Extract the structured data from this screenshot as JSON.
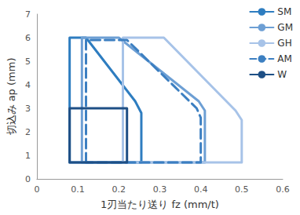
{
  "chart_data": {
    "type": "line",
    "x_label": "1刃当たり送り fz (mm/t)",
    "y_label": "切込み ap (mm)",
    "xlim": [
      0,
      0.6
    ],
    "xticks": [
      0,
      0.1,
      0.2,
      0.3,
      0.4,
      0.5,
      0.6
    ],
    "ylim": [
      0,
      7
    ],
    "yticks": [
      0,
      1,
      2,
      3,
      4,
      5,
      6,
      7
    ],
    "grid": false,
    "legend": "top-right",
    "marker": "none",
    "series": [
      {
        "name": "SM",
        "color": "#2e7dc0",
        "line_style": "solid",
        "x": [
          0.08,
          0.08,
          0.12,
          0.24,
          0.255,
          0.255,
          0.08
        ],
        "values": [
          0.7,
          6,
          6,
          3.3,
          2.8,
          0.7,
          0.7
        ]
      },
      {
        "name": "GM",
        "color": "#6d9fd4",
        "line_style": "solid",
        "x": [
          0.11,
          0.11,
          0.2,
          0.395,
          0.41,
          0.41,
          0.11
        ],
        "values": [
          0.7,
          6,
          6,
          3.3,
          2.9,
          0.7,
          0.7
        ]
      },
      {
        "name": "GH",
        "color": "#a7c3e8",
        "line_style": "solid",
        "x": [
          0.21,
          0.21,
          0.31,
          0.485,
          0.5,
          0.5,
          0.21
        ],
        "values": [
          0.7,
          6,
          6,
          2.9,
          2.5,
          0.7,
          0.7
        ]
      },
      {
        "name": "AM",
        "color": "#3c7fc1",
        "line_style": "dashed",
        "x": [
          0.12,
          0.12,
          0.22,
          0.39,
          0.4,
          0.4,
          0.12
        ],
        "values": [
          0.7,
          5.9,
          5.9,
          3.0,
          2.6,
          0.7,
          0.7
        ]
      },
      {
        "name": "W",
        "color": "#1e4f85",
        "line_style": "solid",
        "x": [
          0.08,
          0.08,
          0.22,
          0.22,
          0.08
        ],
        "values": [
          0.7,
          3,
          3,
          0.7,
          0.7
        ]
      }
    ]
  }
}
